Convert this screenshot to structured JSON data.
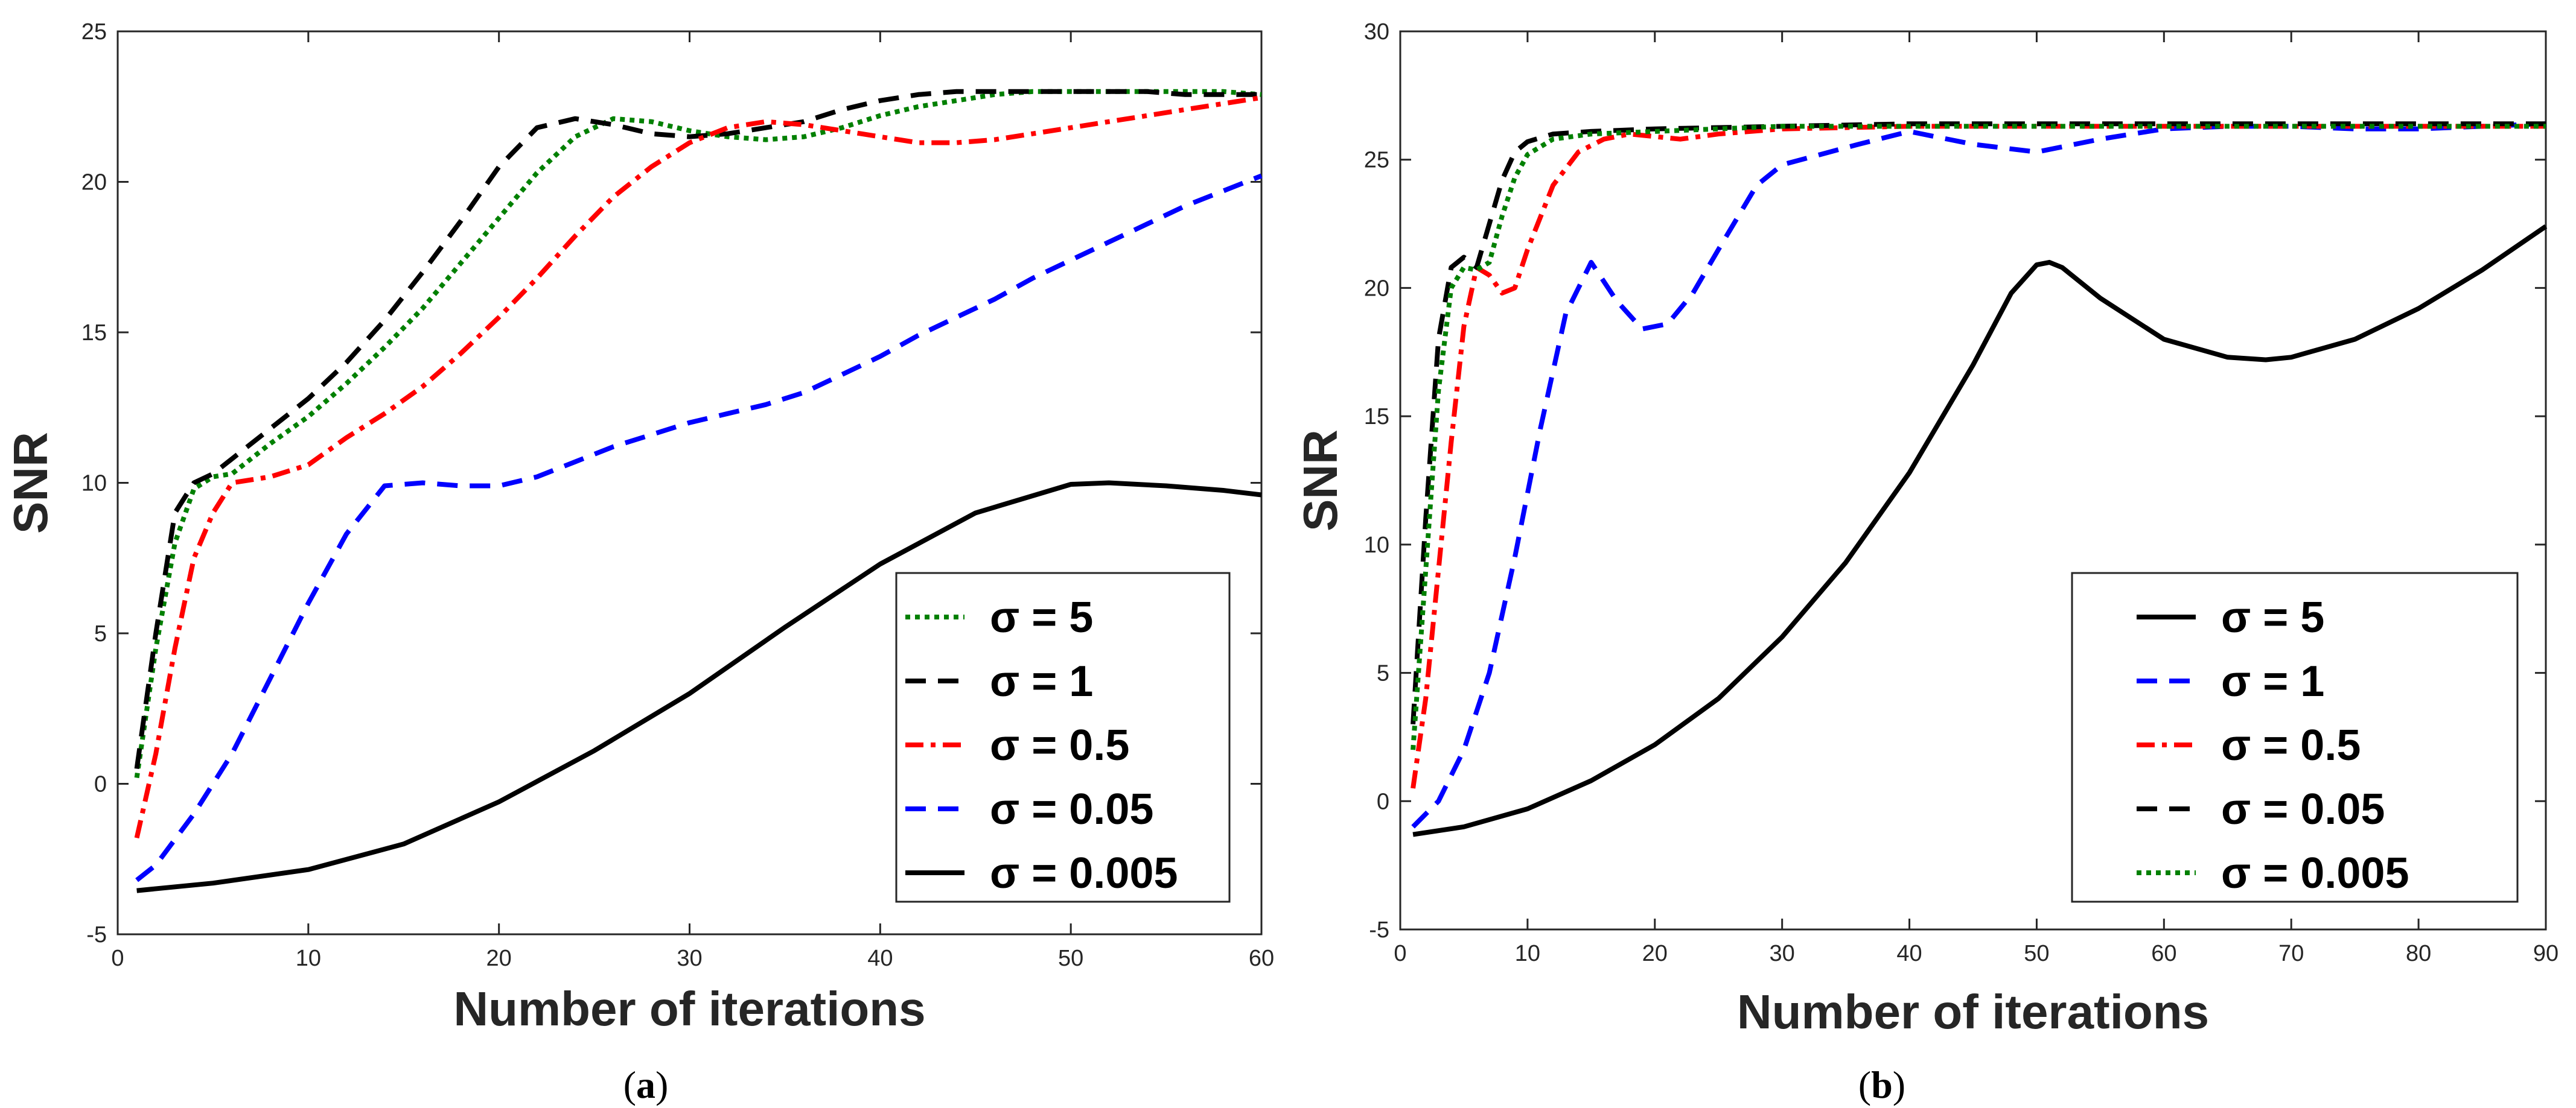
{
  "chart_data": [
    {
      "type": "line",
      "caption_letter": "a",
      "xlabel": "Number of iterations",
      "ylabel": "SNR",
      "xlim": [
        0,
        60
      ],
      "ylim": [
        -5,
        25
      ],
      "xticks": [
        0,
        10,
        20,
        30,
        40,
        50,
        60
      ],
      "yticks": [
        -5,
        0,
        5,
        10,
        15,
        20,
        25
      ],
      "legend_position": "bottom-right",
      "series": [
        {
          "name": "σ = 5",
          "sigma": "5",
          "color": "#008000",
          "style": "dotted",
          "x": [
            1,
            2,
            3,
            4,
            5,
            6,
            8,
            10,
            12,
            14,
            16,
            18,
            20,
            22,
            24,
            26,
            28,
            30,
            32,
            34,
            36,
            38,
            40,
            42,
            44,
            46,
            48,
            50,
            52,
            54,
            56,
            58,
            60
          ],
          "y": [
            0.2,
            4.5,
            8.0,
            9.8,
            10.2,
            10.3,
            11.3,
            12.2,
            13.3,
            14.5,
            15.8,
            17.3,
            18.8,
            20.3,
            21.5,
            22.1,
            22.0,
            21.7,
            21.5,
            21.4,
            21.5,
            21.8,
            22.2,
            22.5,
            22.7,
            22.9,
            23.0,
            23.0,
            23.0,
            23.0,
            23.0,
            23.0,
            22.9
          ]
        },
        {
          "name": "σ = 1",
          "sigma": "1",
          "color": "#000000",
          "style": "dashed",
          "x": [
            1,
            2,
            3,
            4,
            5,
            6,
            8,
            10,
            12,
            14,
            16,
            18,
            20,
            22,
            24,
            26,
            28,
            30,
            32,
            34,
            36,
            38,
            40,
            42,
            44,
            46,
            48,
            50,
            52,
            54,
            56,
            58,
            60
          ],
          "y": [
            0.5,
            5.0,
            9.0,
            10.0,
            10.3,
            10.8,
            11.8,
            12.8,
            14.0,
            15.4,
            17.0,
            18.7,
            20.5,
            21.8,
            22.1,
            21.9,
            21.6,
            21.5,
            21.6,
            21.8,
            22.0,
            22.4,
            22.7,
            22.9,
            23.0,
            23.0,
            23.0,
            23.0,
            23.0,
            23.0,
            22.9,
            22.9,
            22.9
          ]
        },
        {
          "name": "σ = 0.5",
          "sigma": "0.5",
          "color": "#ff0000",
          "style": "dashdot",
          "x": [
            1,
            2,
            3,
            4,
            5,
            6,
            8,
            10,
            12,
            14,
            16,
            18,
            20,
            22,
            24,
            26,
            28,
            30,
            32,
            34,
            36,
            38,
            40,
            42,
            44,
            46,
            48,
            50,
            52,
            54,
            56,
            58,
            60
          ],
          "y": [
            -1.8,
            1.0,
            4.5,
            7.5,
            9.0,
            10.0,
            10.2,
            10.6,
            11.5,
            12.3,
            13.2,
            14.3,
            15.5,
            16.8,
            18.2,
            19.5,
            20.5,
            21.3,
            21.8,
            22.0,
            21.9,
            21.7,
            21.5,
            21.3,
            21.3,
            21.4,
            21.6,
            21.8,
            22.0,
            22.2,
            22.4,
            22.6,
            22.8
          ]
        },
        {
          "name": "σ = 0.05",
          "sigma": "0.05",
          "color": "#0000ff",
          "style": "dashed",
          "x": [
            1,
            2,
            4,
            6,
            8,
            10,
            12,
            14,
            16,
            18,
            20,
            22,
            24,
            26,
            28,
            30,
            32,
            34,
            36,
            38,
            40,
            42,
            44,
            46,
            48,
            50,
            52,
            54,
            56,
            58,
            60
          ],
          "y": [
            -3.2,
            -2.7,
            -1.0,
            1.0,
            3.5,
            6.0,
            8.3,
            9.9,
            10.0,
            9.9,
            9.9,
            10.2,
            10.7,
            11.2,
            11.6,
            12.0,
            12.3,
            12.6,
            13.0,
            13.6,
            14.2,
            14.9,
            15.5,
            16.1,
            16.8,
            17.4,
            18.0,
            18.6,
            19.2,
            19.7,
            20.2
          ]
        },
        {
          "name": "σ = 0.005",
          "sigma": "0.005",
          "color": "#000000",
          "style": "solid",
          "x": [
            1,
            5,
            10,
            15,
            20,
            25,
            30,
            35,
            40,
            45,
            50,
            52,
            55,
            58,
            60
          ],
          "y": [
            -3.55,
            -3.3,
            -2.85,
            -2.0,
            -0.6,
            1.1,
            3.0,
            5.2,
            7.3,
            9.0,
            9.95,
            10.0,
            9.9,
            9.75,
            9.6
          ]
        }
      ]
    },
    {
      "type": "line",
      "caption_letter": "b",
      "xlabel": "Number of iterations",
      "ylabel": "SNR",
      "xlim": [
        0,
        90
      ],
      "ylim": [
        -5,
        30
      ],
      "xticks": [
        0,
        10,
        20,
        30,
        40,
        50,
        60,
        70,
        80,
        90
      ],
      "yticks": [
        -5,
        0,
        5,
        10,
        15,
        20,
        25,
        30
      ],
      "legend_position": "bottom-right",
      "series": [
        {
          "name": "σ = 5",
          "sigma": "5",
          "color": "#000000",
          "style": "solid",
          "x": [
            1,
            5,
            10,
            15,
            20,
            25,
            30,
            35,
            40,
            45,
            48,
            50,
            51,
            52,
            55,
            60,
            65,
            68,
            70,
            75,
            80,
            85,
            90
          ],
          "y": [
            -1.3,
            -1.0,
            -0.3,
            0.8,
            2.2,
            4.0,
            6.4,
            9.3,
            12.8,
            17.0,
            19.8,
            20.9,
            21.0,
            20.8,
            19.6,
            18.0,
            17.3,
            17.2,
            17.3,
            18.0,
            19.2,
            20.7,
            22.4
          ]
        },
        {
          "name": "σ = 1",
          "sigma": "1",
          "color": "#0000ff",
          "style": "dashed",
          "x": [
            1,
            3,
            5,
            7,
            9,
            11,
            13,
            15,
            17,
            19,
            21,
            23,
            25,
            28,
            30,
            33,
            36,
            40,
            45,
            50,
            55,
            60,
            65,
            70,
            75,
            80,
            85,
            90
          ],
          "y": [
            -1.0,
            0.0,
            2.0,
            5.0,
            9.5,
            14.5,
            19.0,
            21.0,
            19.5,
            18.4,
            18.6,
            19.8,
            21.5,
            24.0,
            24.8,
            25.2,
            25.6,
            26.1,
            25.6,
            25.3,
            25.8,
            26.2,
            26.3,
            26.3,
            26.2,
            26.2,
            26.3,
            26.4
          ]
        },
        {
          "name": "σ = 0.5",
          "sigma": "0.5",
          "color": "#ff0000",
          "style": "dashdot",
          "x": [
            1,
            2,
            3,
            4,
            5,
            6,
            7,
            8,
            9,
            10,
            12,
            14,
            16,
            18,
            20,
            22,
            25,
            30,
            40,
            50,
            60,
            70,
            80,
            90
          ],
          "y": [
            0.5,
            4.0,
            9.0,
            14.0,
            18.5,
            20.8,
            20.5,
            19.8,
            20.0,
            21.5,
            24.0,
            25.3,
            25.8,
            26.0,
            25.9,
            25.8,
            26.0,
            26.2,
            26.3,
            26.3,
            26.3,
            26.3,
            26.3,
            26.3
          ]
        },
        {
          "name": "σ = 0.05",
          "sigma": "0.05",
          "color": "#000000",
          "style": "dashed",
          "x": [
            1,
            2,
            3,
            4,
            5,
            6,
            7,
            8,
            9,
            10,
            12,
            15,
            20,
            30,
            40,
            50,
            60,
            70,
            80,
            90
          ],
          "y": [
            3.0,
            11.0,
            18.0,
            20.8,
            21.2,
            20.8,
            22.5,
            24.2,
            25.3,
            25.7,
            26.0,
            26.1,
            26.2,
            26.3,
            26.4,
            26.4,
            26.4,
            26.4,
            26.4,
            26.4
          ]
        },
        {
          "name": "σ = 0.005",
          "sigma": "0.005",
          "color": "#008000",
          "style": "dotted",
          "x": [
            1,
            2,
            3,
            4,
            5,
            6,
            7,
            8,
            9,
            10,
            12,
            15,
            20,
            30,
            40,
            50,
            60,
            70,
            80,
            90
          ],
          "y": [
            2.0,
            9.0,
            16.0,
            20.0,
            20.8,
            20.7,
            21.0,
            22.8,
            24.3,
            25.2,
            25.8,
            26.0,
            26.1,
            26.3,
            26.3,
            26.3,
            26.3,
            26.3,
            26.3,
            26.3
          ]
        }
      ]
    }
  ]
}
